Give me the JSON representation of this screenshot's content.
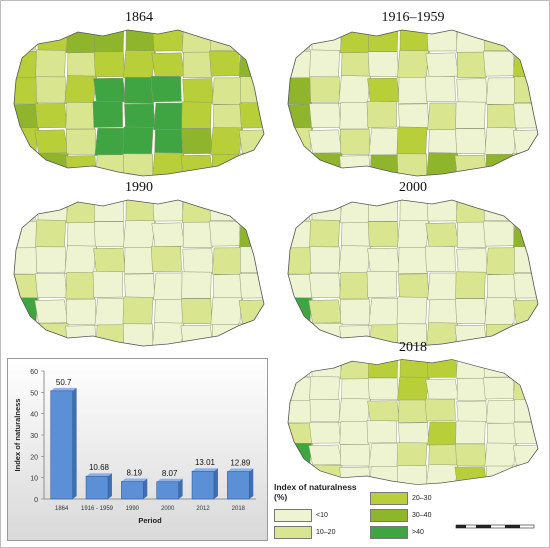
{
  "maps": [
    {
      "key": "m1864",
      "title": "1864"
    },
    {
      "key": "m1916",
      "title": "1916–1959"
    },
    {
      "key": "m1990",
      "title": "1990"
    },
    {
      "key": "m2000",
      "title": "2000"
    },
    {
      "key": "m2018",
      "title": "2018"
    }
  ],
  "legend": {
    "title": "Index of naturalness (%)",
    "classes": [
      {
        "label": "<10",
        "color": "#eef3d2"
      },
      {
        "label": "10–20",
        "color": "#d9e68f"
      },
      {
        "label": "20–30",
        "color": "#b9cf3a"
      },
      {
        "label": "30–40",
        "color": "#8fb52d"
      },
      {
        "label": ">40",
        "color": "#3fa542"
      }
    ]
  },
  "chart_data": {
    "type": "bar",
    "categories": [
      "1864",
      "1916 - 1959",
      "1990",
      "2000",
      "2012",
      "2018"
    ],
    "values": [
      50.7,
      10.68,
      8.19,
      8.07,
      13.01,
      12.89
    ],
    "data_labels": [
      "50.7",
      "10.68",
      "8.19",
      "8.07",
      "13.01",
      "12.89"
    ],
    "xlabel": "Period",
    "ylabel": "Index of naturalness",
    "ylim": [
      0,
      60
    ],
    "yticks": [
      0,
      10,
      20,
      30,
      40,
      50,
      60
    ],
    "bar_color": "#5b8fd6",
    "grid": false
  }
}
